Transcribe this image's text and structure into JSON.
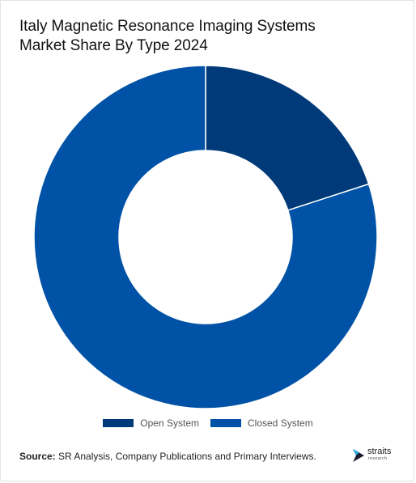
{
  "title_line1": "Italy Magnetic Resonance Imaging Systems",
  "title_line2": "Market Share By Type 2024",
  "chart_data": {
    "type": "pie",
    "donut": true,
    "title": "Italy Magnetic Resonance Imaging Systems Market Share By Type 2024",
    "labels": [
      "Open System",
      "Closed System"
    ],
    "values": [
      20,
      80
    ],
    "unit": "%",
    "colors": [
      "#003a78",
      "#0052a6"
    ],
    "start_angle_deg": 0,
    "legend_position": "bottom"
  },
  "legend": [
    {
      "label": "Open System",
      "color": "#003a78"
    },
    {
      "label": "Closed System",
      "color": "#0052a6"
    }
  ],
  "source": {
    "prefix": "Source:",
    "text": " SR Analysis, Company Publications and Primary Interviews."
  },
  "logo": {
    "name": "straits",
    "sub": "research"
  }
}
